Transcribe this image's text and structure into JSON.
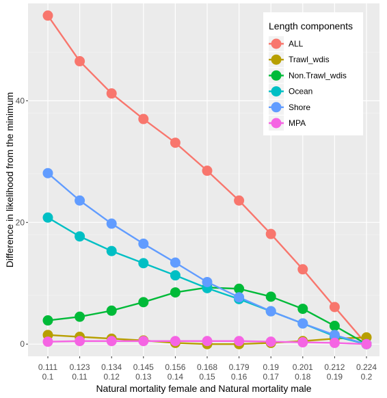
{
  "chart_data": {
    "type": "line",
    "title": "",
    "xlabel": "Natural mortality female and Natural mortality male",
    "ylabel": "Difference in likelihood from the minimum",
    "x_tick_labels_top": [
      "0.111",
      "0.123",
      "0.134",
      "0.145",
      "0.156",
      "0.168",
      "0.179",
      "0.19",
      "0.201",
      "0.212",
      "0.224"
    ],
    "x_tick_labels_bottom": [
      "0.1",
      "0.11",
      "0.12",
      "0.13",
      "0.14",
      "0.15",
      "0.16",
      "0.17",
      "0.18",
      "0.19",
      "0.2"
    ],
    "ylim": [
      -2,
      56
    ],
    "yticks": [
      "0",
      "20",
      "40"
    ],
    "yticks_values": [
      0,
      20,
      40
    ],
    "grid": true,
    "legend": {
      "title": "Length components",
      "position": "top-right"
    },
    "series": [
      {
        "name": "ALL",
        "color": "#F8766D",
        "values": [
          54.0,
          46.5,
          41.2,
          37.0,
          33.1,
          28.5,
          23.6,
          18.1,
          12.3,
          6.1,
          0.0
        ]
      },
      {
        "name": "Trawl_wdis",
        "color": "#B79F00",
        "values": [
          1.5,
          1.2,
          0.9,
          0.6,
          0.2,
          0.0,
          0.0,
          0.2,
          0.5,
          0.9,
          1.1
        ]
      },
      {
        "name": "Non.Trawl_wdis",
        "color": "#00BA38",
        "values": [
          3.9,
          4.5,
          5.5,
          6.9,
          8.5,
          9.3,
          9.1,
          7.8,
          5.8,
          3.0,
          0.0
        ]
      },
      {
        "name": "Ocean",
        "color": "#00BFC4",
        "values": [
          20.8,
          17.7,
          15.3,
          13.3,
          11.3,
          9.2,
          7.4,
          5.4,
          3.4,
          1.3,
          0.0
        ]
      },
      {
        "name": "Shore",
        "color": "#619CFF",
        "values": [
          28.1,
          23.6,
          19.8,
          16.5,
          13.4,
          10.2,
          7.7,
          5.4,
          3.4,
          1.5,
          0.0
        ]
      },
      {
        "name": "MPA",
        "color": "#F564E3",
        "values": [
          0.4,
          0.5,
          0.5,
          0.5,
          0.5,
          0.5,
          0.5,
          0.4,
          0.3,
          0.2,
          0.0
        ]
      }
    ]
  }
}
